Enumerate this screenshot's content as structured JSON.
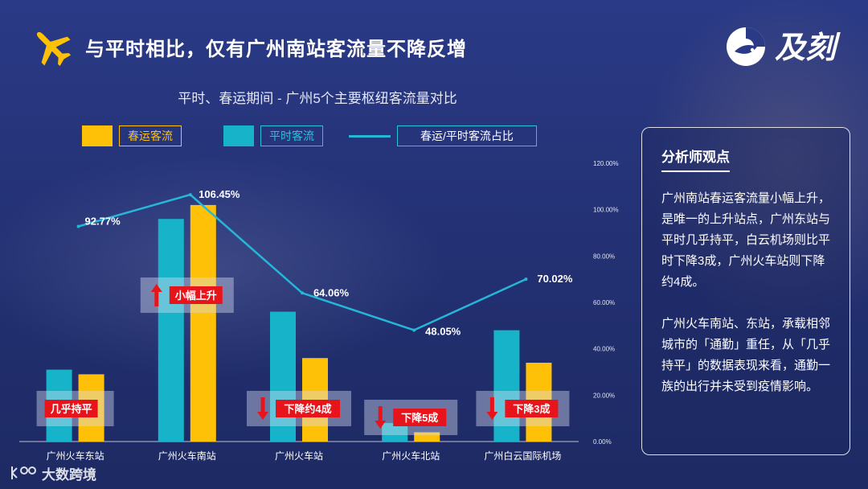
{
  "header": {
    "title": "与平时相比，仅有广州南站客流量不降反增",
    "logo_text": "及刻"
  },
  "source": {
    "text": "大数跨境"
  },
  "panel": {
    "title": "分析师观点",
    "paragraph1": "广州南站春运客流量小幅上升，是唯一的上升站点，广州东站与平时几乎持平，白云机场则比平时下降3成，广州火车站则下降约4成。",
    "paragraph2": "广州火车南站、东站，承载相邻城市的「通勤」重任，从「几乎持平」的数据表现来看，通勤一族的出行并未受到疫情影响。"
  },
  "colors": {
    "spring": "#ffc107",
    "normal": "#17b3c8",
    "ratio_line": "#26b7d8",
    "badge": "#e8141c"
  },
  "chart_data": {
    "type": "bar",
    "title": "平时、春运期间 - 广州5个主要枢纽客流量对比",
    "legend": {
      "spring": "春运客流",
      "normal": "平时客流",
      "ratio": "春运/平时客流占比"
    },
    "categories": [
      "广州火车东站",
      "广州火车南站",
      "广州火车站",
      "广州火车北站",
      "广州白云国际机场"
    ],
    "series": [
      {
        "name": "平时客流",
        "key": "normal",
        "values": [
          31,
          96,
          56,
          8,
          48
        ]
      },
      {
        "name": "春运客流",
        "key": "spring",
        "values": [
          29,
          102,
          36,
          4,
          34
        ]
      }
    ],
    "ratio_series": {
      "name": "春运/平时客流占比",
      "values": [
        92.77,
        106.45,
        64.06,
        48.05,
        70.02
      ],
      "labels": [
        "92.77%",
        "106.45%",
        "64.06%",
        "48.05%",
        "70.02%"
      ]
    },
    "y2_ticks": [
      "0.00%",
      "20.00%",
      "40.00%",
      "60.00%",
      "80.00%",
      "100.00%",
      "120.00%"
    ],
    "y2lim": [
      0,
      120
    ],
    "badges": [
      {
        "text": "几乎持平",
        "arrow": "none"
      },
      {
        "text": "小幅上升",
        "arrow": "up"
      },
      {
        "text": "下降约4成",
        "arrow": "down"
      },
      {
        "text": "下降5成",
        "arrow": "down"
      },
      {
        "text": "下降3成",
        "arrow": "down"
      }
    ]
  }
}
